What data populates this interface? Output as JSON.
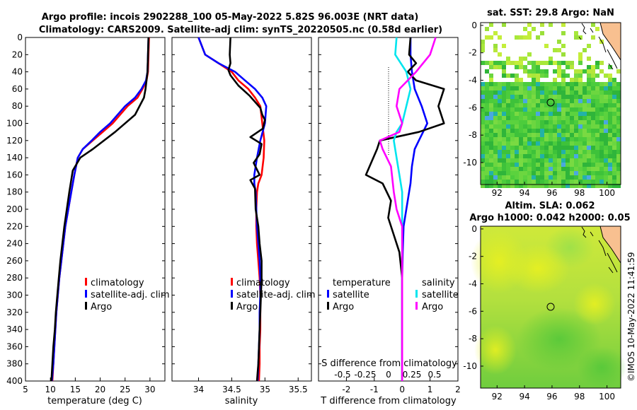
{
  "header": {
    "line1": "Argo profile: incois 2902288_100 05-May-2022 5.82S 96.003E (NRT data)",
    "line2": "Climatology: CARS2009. Satellite-adj clim: synTS_20220505.nc (0.58d earlier)"
  },
  "colors": {
    "climatology": "#ff0000",
    "satellite": "#0000ff",
    "argo": "#000000",
    "salinity_satellite": "#00e5ee",
    "salinity_argo": "#ff00ff"
  },
  "chart_data": [
    {
      "type": "line",
      "id": "temperature",
      "xlabel": "temperature (deg C)",
      "ylabel": "",
      "xlim": [
        5,
        33
      ],
      "ylim": [
        400,
        0
      ],
      "xticks": [
        5,
        10,
        15,
        20,
        25,
        30
      ],
      "yticks": [
        0,
        20,
        40,
        60,
        80,
        100,
        120,
        140,
        160,
        180,
        200,
        220,
        240,
        260,
        280,
        300,
        320,
        340,
        360,
        380,
        400
      ],
      "legend": {
        "position": "bottom-right",
        "items": [
          "climatology",
          "satellite-adj. clim",
          "Argo"
        ]
      },
      "series": [
        {
          "name": "climatology",
          "color": "#ff0000",
          "x": [
            29.8,
            29.7,
            29.6,
            29.3,
            28.5,
            27.5,
            25.5,
            22.5,
            20.5,
            18.5,
            16.5,
            15.5,
            14.8,
            14.2,
            13.6,
            13.0,
            12.6,
            12.2,
            11.8,
            11.5,
            11.2,
            11.0,
            10.8,
            10.6,
            10.4
          ],
          "y": [
            0,
            20,
            40,
            50,
            60,
            70,
            80,
            100,
            110,
            120,
            130,
            140,
            160,
            180,
            200,
            220,
            240,
            260,
            280,
            300,
            320,
            340,
            360,
            380,
            400
          ]
        },
        {
          "name": "satellite-adj. clim",
          "color": "#0000ff",
          "x": [
            29.7,
            29.6,
            29.5,
            29.2,
            28.3,
            27.0,
            25.0,
            22.0,
            20.0,
            18.3,
            16.5,
            15.5,
            14.8,
            14.2,
            13.6,
            13.0,
            12.6,
            12.2,
            11.8,
            11.5,
            11.2,
            11.0,
            10.8,
            10.6,
            10.3
          ],
          "y": [
            0,
            20,
            40,
            50,
            60,
            70,
            80,
            100,
            110,
            120,
            130,
            140,
            160,
            180,
            200,
            220,
            240,
            260,
            280,
            300,
            320,
            340,
            360,
            380,
            400
          ]
        },
        {
          "name": "Argo",
          "color": "#000000",
          "x": [
            29.7,
            29.6,
            29.5,
            29.3,
            29.1,
            28.8,
            27.0,
            23.0,
            18.5,
            16.0,
            14.5,
            13.8,
            13.3,
            12.8,
            12.4,
            12.0,
            11.7,
            11.4,
            11.1,
            10.9,
            10.6,
            10.4,
            10.2
          ],
          "y": [
            0,
            20,
            40,
            50,
            60,
            70,
            90,
            110,
            130,
            140,
            155,
            180,
            200,
            220,
            240,
            260,
            280,
            300,
            320,
            340,
            360,
            380,
            400
          ]
        }
      ]
    },
    {
      "type": "line",
      "id": "salinity",
      "xlabel": "salinity",
      "xlim": [
        33.6,
        35.7
      ],
      "ylim": [
        400,
        0
      ],
      "xticks": [
        34,
        34.5,
        35,
        35.5
      ],
      "legend": {
        "position": "bottom-right",
        "items": [
          "climatology",
          "satellite-adj. clim",
          "Argo"
        ]
      },
      "series": [
        {
          "name": "climatology",
          "color": "#ff0000",
          "x": [
            34.0,
            34.1,
            34.3,
            34.5,
            34.6,
            34.75,
            34.85,
            34.93,
            34.96,
            34.99,
            34.98,
            34.95,
            34.9,
            34.88,
            34.87,
            34.87,
            34.88,
            34.9,
            34.92,
            34.93,
            34.93,
            34.93,
            34.92,
            34.92,
            34.91
          ],
          "y": [
            0,
            20,
            30,
            40,
            50,
            60,
            70,
            80,
            100,
            120,
            140,
            160,
            170,
            180,
            200,
            220,
            240,
            260,
            280,
            300,
            320,
            340,
            360,
            380,
            400
          ]
        },
        {
          "name": "satellite-adj. clim",
          "color": "#0000ff",
          "x": [
            34.0,
            34.1,
            34.3,
            34.55,
            34.7,
            34.85,
            34.96,
            35.02,
            35.0,
            34.93,
            34.88,
            34.84,
            34.84,
            34.86,
            34.87,
            34.88,
            34.9,
            34.92,
            34.93,
            34.93,
            34.92,
            34.92,
            34.91,
            34.9,
            34.89
          ],
          "y": [
            0,
            20,
            30,
            40,
            50,
            60,
            70,
            80,
            100,
            120,
            140,
            160,
            170,
            180,
            200,
            220,
            240,
            260,
            280,
            300,
            320,
            340,
            360,
            380,
            400
          ]
        },
        {
          "name": "Argo",
          "color": "#000000",
          "x": [
            34.48,
            34.47,
            34.48,
            34.45,
            34.48,
            34.6,
            34.77,
            34.93,
            34.96,
            35.0,
            34.97,
            34.78,
            34.95,
            34.92,
            34.83,
            34.92,
            34.78,
            34.85,
            34.86,
            34.9,
            34.92,
            34.95,
            34.95,
            34.94,
            34.93,
            34.92,
            34.91,
            34.9,
            34.89,
            34.88
          ],
          "y": [
            0,
            20,
            30,
            38,
            44,
            56,
            68,
            82,
            90,
            96,
            106,
            116,
            124,
            136,
            146,
            160,
            166,
            176,
            200,
            220,
            240,
            260,
            280,
            300,
            320,
            340,
            360,
            380,
            390,
            400
          ]
        }
      ]
    },
    {
      "type": "line",
      "id": "difference",
      "xlabel": "T difference from climatology",
      "x2label": "S difference from climatology",
      "xlim": [
        -3.0,
        2.0
      ],
      "ylim": [
        400,
        0
      ],
      "xticks": [
        -2,
        -1,
        0,
        1,
        2
      ],
      "x2ticks": [
        "-0.5",
        "-0.25",
        "0",
        "0.25",
        "0.5"
      ],
      "legend": {
        "position": "bottom",
        "headers": [
          "temperature",
          "salinity"
        ],
        "items": [
          "satellite",
          "Argo",
          "satellite",
          "Argo"
        ]
      },
      "series": [
        {
          "name": "temperature satellite",
          "color": "#0000ff",
          "x": [
            0.3,
            0.3,
            0.35,
            0.45,
            0.7,
            0.9,
            0.75,
            0.6,
            0.45,
            0.35,
            0.3,
            0.25,
            0.15,
            0.05,
            0.02,
            0.0,
            0.0,
            0.0,
            0.0,
            0.0
          ],
          "y": [
            0,
            20,
            40,
            60,
            80,
            100,
            110,
            120,
            130,
            150,
            170,
            180,
            200,
            220,
            250,
            280,
            310,
            340,
            370,
            400
          ]
        },
        {
          "name": "temperature Argo",
          "color": "#000000",
          "x": [
            0.3,
            0.25,
            0.5,
            0.2,
            0.5,
            1.5,
            1.3,
            1.5,
            0.6,
            -0.8,
            -0.9,
            -1.3,
            -0.7,
            -0.4,
            -0.5,
            -0.3,
            -0.1,
            0.0,
            0.0,
            0.0
          ],
          "y": [
            0,
            20,
            30,
            40,
            50,
            60,
            80,
            100,
            110,
            120,
            130,
            160,
            170,
            190,
            210,
            230,
            250,
            280,
            320,
            400
          ]
        },
        {
          "name": "salinity satellite",
          "color": "#00e5ee",
          "x": [
            -0.2,
            -0.25,
            0.15,
            0.3,
            0.15,
            0.0,
            -0.2,
            -0.3,
            -0.2,
            -0.1,
            0.0,
            0.0,
            0.0,
            0.0,
            0.0,
            0.0,
            0.0,
            0.0
          ],
          "y": [
            0,
            20,
            40,
            60,
            80,
            100,
            110,
            120,
            140,
            160,
            180,
            200,
            220,
            250,
            300,
            340,
            370,
            400
          ]
        },
        {
          "name": "salinity Argo",
          "color": "#ff00ff",
          "x": [
            1.2,
            1.0,
            0.5,
            -0.1,
            -0.2,
            0.0,
            -0.1,
            -0.8,
            -0.7,
            -0.4,
            -0.3,
            -0.2,
            0.0,
            0.0,
            0.0,
            0.0,
            0.0
          ],
          "y": [
            0,
            20,
            40,
            60,
            80,
            100,
            110,
            120,
            130,
            150,
            180,
            200,
            220,
            250,
            300,
            340,
            400
          ]
        }
      ]
    }
  ],
  "maps": [
    {
      "id": "sst-map",
      "title": "sat. SST: 29.8 Argo: NaN",
      "xticks": [
        "92",
        "94",
        "96",
        "98",
        "100"
      ],
      "yticks": [
        "0",
        "-2",
        "-4",
        "-6",
        "-8",
        "-10"
      ],
      "marker": {
        "lon": 96.0,
        "lat": -5.82
      }
    },
    {
      "id": "sla-map",
      "title1": "Altim. SLA: 0.062",
      "title2": "Argo h1000: 0.042 h2000: 0.05",
      "xticks": [
        "92",
        "94",
        "96",
        "98",
        "100"
      ],
      "yticks": [
        "0",
        "-2",
        "-4",
        "-6",
        "-8",
        "-10"
      ],
      "marker": {
        "lon": 96.0,
        "lat": -5.82
      }
    }
  ],
  "footer": {
    "credit": "©IMOS 10-May-2022 11:41:59"
  }
}
